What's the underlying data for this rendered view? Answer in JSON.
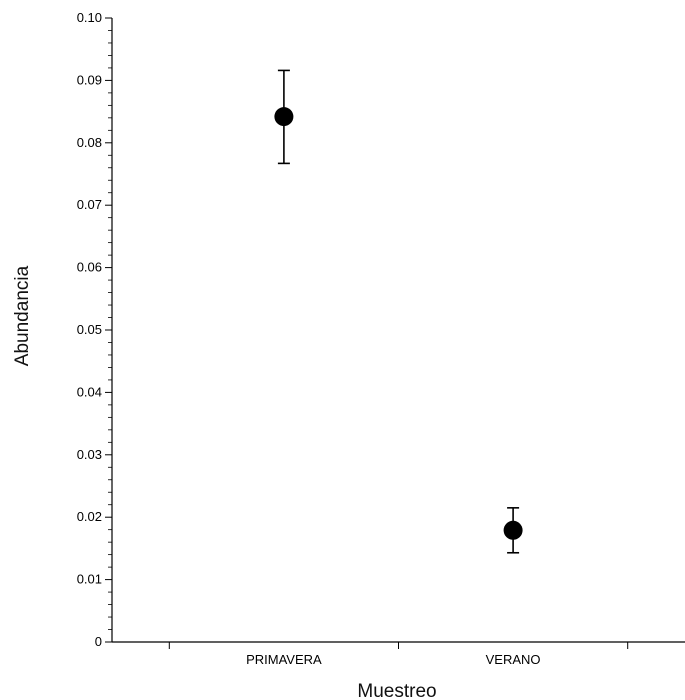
{
  "chart_data": {
    "type": "scatter",
    "title": "",
    "xlabel": "Muestreo",
    "ylabel": "Abundancia",
    "categories": [
      "PRIMAVERA",
      "VERANO"
    ],
    "values": [
      0.0842,
      0.0179
    ],
    "error_bars": [
      {
        "low": 0.0767,
        "high": 0.0916
      },
      {
        "low": 0.0143,
        "high": 0.0215
      }
    ],
    "ylim": [
      0,
      0.1
    ],
    "y_ticks": [
      {
        "value": 0,
        "label": "0"
      },
      {
        "value": 0.01,
        "label": "0.01"
      },
      {
        "value": 0.02,
        "label": "0.02"
      },
      {
        "value": 0.03,
        "label": "0.03"
      },
      {
        "value": 0.04,
        "label": "0.04"
      },
      {
        "value": 0.05,
        "label": "0.05"
      },
      {
        "value": 0.06,
        "label": "0.06"
      },
      {
        "value": 0.07,
        "label": "0.07"
      },
      {
        "value": 0.08,
        "label": "0.08"
      },
      {
        "value": 0.09,
        "label": "0.09"
      },
      {
        "value": 0.1,
        "label": "0.10"
      }
    ],
    "minor_ticks_per_major": 5,
    "grid": false,
    "legend": "none",
    "marker_color": "#000000"
  }
}
